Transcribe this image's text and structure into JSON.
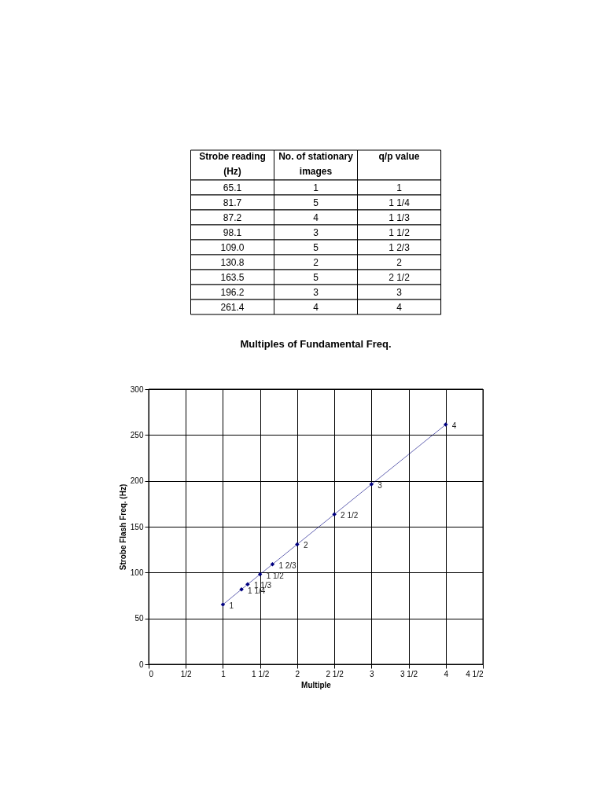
{
  "chart_data": [
    {
      "type": "other",
      "annotations": [
        "Strobe reading (Hz)",
        "No. of stationary images",
        "q/p value",
        "65.1",
        "1",
        "1",
        "81.7",
        "5",
        "1 1/4",
        "87.2",
        "4",
        "1 1/3",
        "98.1",
        "3",
        "1 1/2",
        "109.0",
        "5",
        "1 2/3",
        "130.8",
        "2",
        "2",
        "163.5",
        "5",
        "2 1/2",
        "196.2",
        "3",
        "3",
        "261.4",
        "4",
        "4"
      ]
    },
    {
      "type": "line",
      "title": "Multiples of Fundamental Freq.",
      "xlabel": "Multiple",
      "ylabel": "Strobe Flash Freq. (Hz)",
      "x": [
        1,
        1.25,
        1.333,
        1.5,
        1.667,
        2,
        2.5,
        3,
        4
      ],
      "series": [
        {
          "color": "#000080",
          "values": [
            65.1,
            81.7,
            87.2,
            98.1,
            109.0,
            130.8,
            163.5,
            196.2,
            261.4
          ]
        }
      ],
      "xlim": [
        0,
        4.5
      ],
      "ylim": [
        0,
        300
      ],
      "xticks": [
        0,
        {
          "value": 0.5,
          "label": "1/2"
        },
        1,
        {
          "value": 1.5,
          "label": "1 1/2"
        },
        2,
        {
          "value": 2.5,
          "label": "2 1/2"
        },
        3,
        {
          "value": 3.5,
          "label": "3 1/2"
        },
        4,
        {
          "value": 4.5,
          "label": "4 1/2"
        }
      ],
      "yticks": [
        0,
        50,
        100,
        150,
        200,
        250,
        300
      ],
      "grid": true,
      "marker": "diamond",
      "line_style": "solid",
      "annotations": [
        {
          "text": "1",
          "x": 1,
          "y": 65.1
        },
        {
          "text": "1 1/4",
          "x": 1.25,
          "y": 81.7
        },
        {
          "text": "1 1/3",
          "x": 1.333,
          "y": 87.2
        },
        {
          "text": "1 1/2",
          "x": 1.5,
          "y": 98.1
        },
        {
          "text": "1 2/3",
          "x": 1.667,
          "y": 109.0
        },
        {
          "text": "2",
          "x": 2,
          "y": 130.8
        },
        {
          "text": "2 1/2",
          "x": 2.5,
          "y": 163.5
        },
        {
          "text": "3",
          "x": 3,
          "y": 196.2
        },
        {
          "text": "4",
          "x": 4,
          "y": 261.4
        }
      ]
    }
  ]
}
